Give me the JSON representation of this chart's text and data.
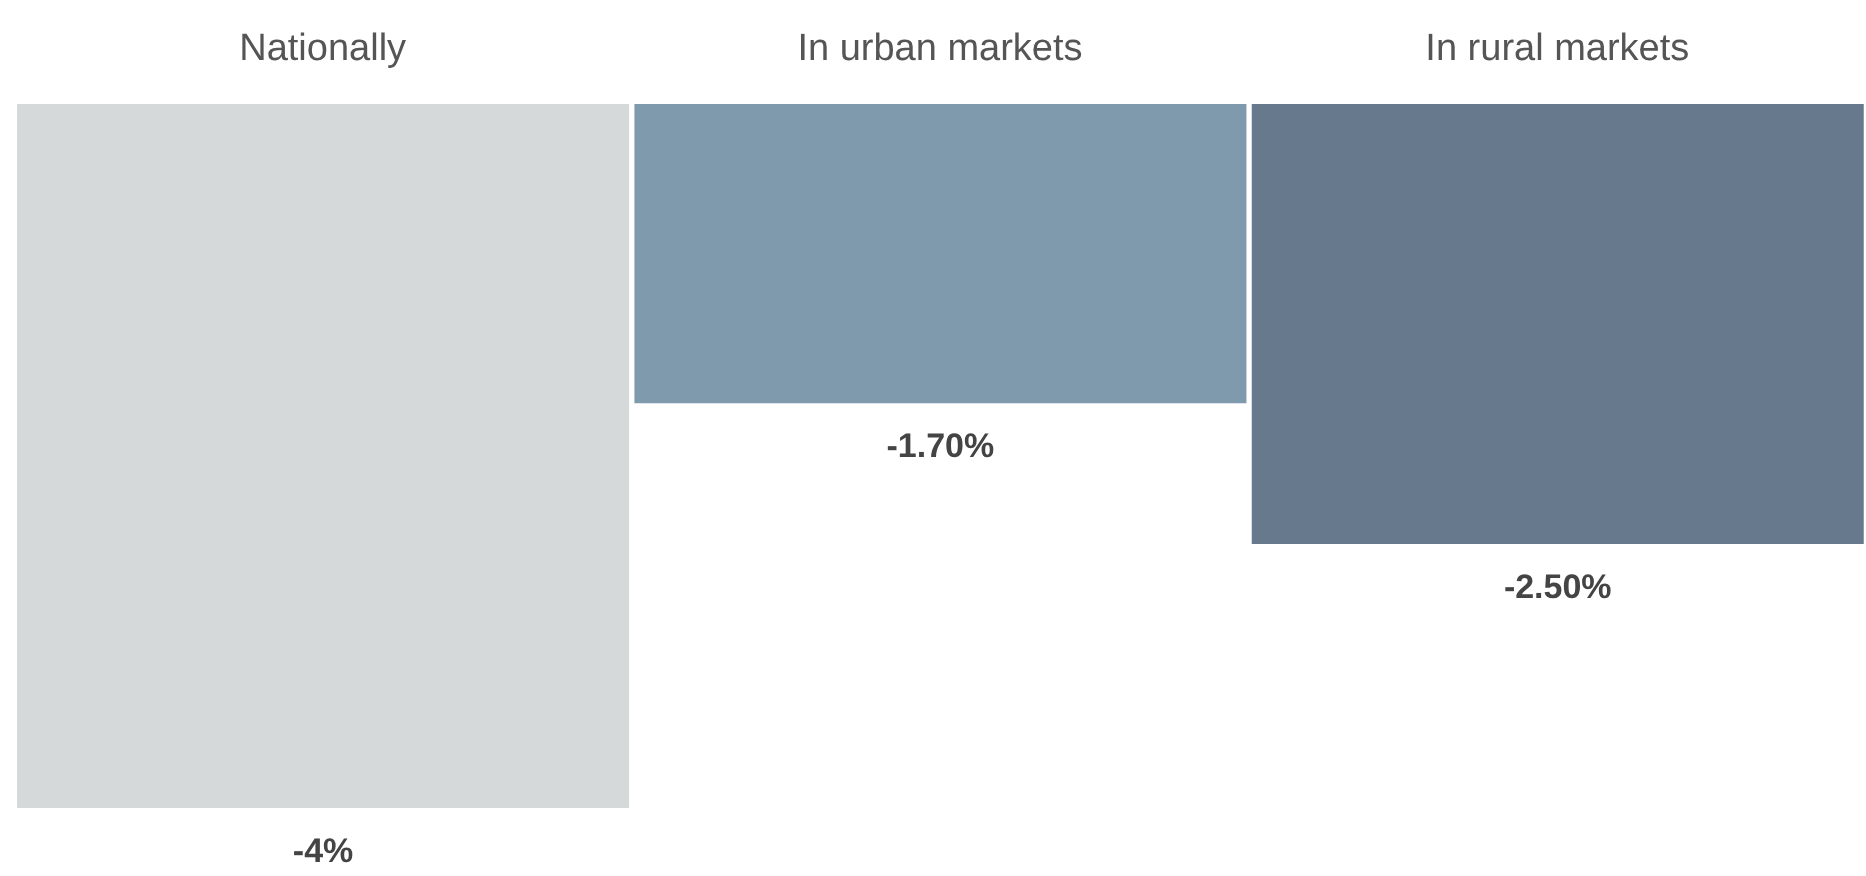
{
  "chart_data": {
    "type": "bar",
    "categories": [
      "Nationally",
      "In urban markets",
      "In rural markets"
    ],
    "values": [
      -4,
      -1.7,
      -2.5
    ],
    "colors": [
      "#d5d9da",
      "#7f99ad",
      "#677a8d"
    ],
    "value_labels": [
      "-4%",
      "-1.70%",
      "-2.50%"
    ],
    "ylim": [
      -4,
      0
    ],
    "tick_labels": "x"
  }
}
